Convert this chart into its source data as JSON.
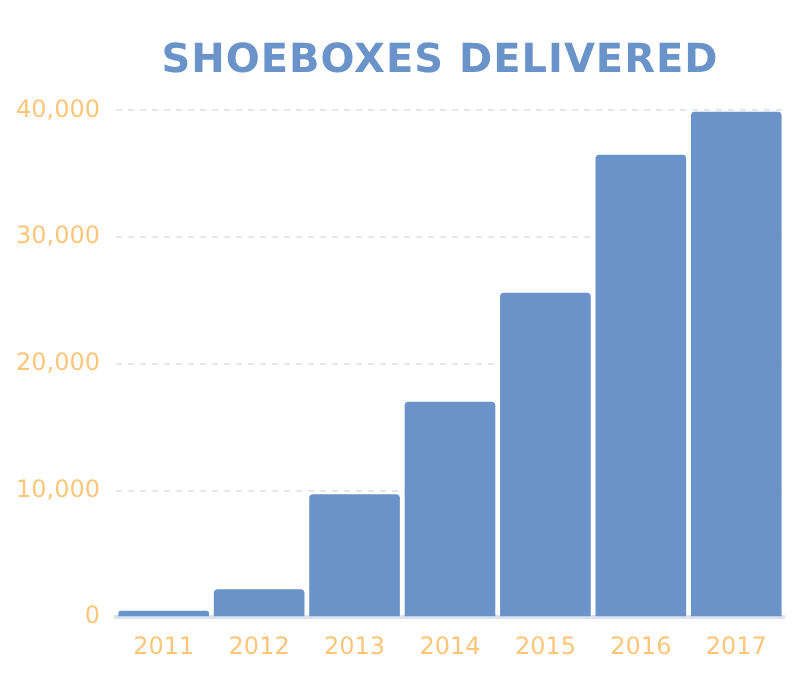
{
  "chart_data": {
    "type": "bar",
    "title": "SHOEBOXES DELIVERED",
    "categories": [
      "2011",
      "2012",
      "2013",
      "2014",
      "2015",
      "2016",
      "2017"
    ],
    "values": [
      500,
      2200,
      9700,
      17000,
      25600,
      36500,
      39900
    ],
    "color": "#6a93c9",
    "ylim": [
      0,
      40000
    ],
    "yticks": [
      {
        "value": 0,
        "label": "0"
      },
      {
        "value": 10000,
        "label": "10,000"
      },
      {
        "value": 20000,
        "label": "20,000"
      },
      {
        "value": 30000,
        "label": "30,000"
      },
      {
        "value": 40000,
        "label": "40,000"
      }
    ],
    "grid": "y",
    "legend": false
  }
}
